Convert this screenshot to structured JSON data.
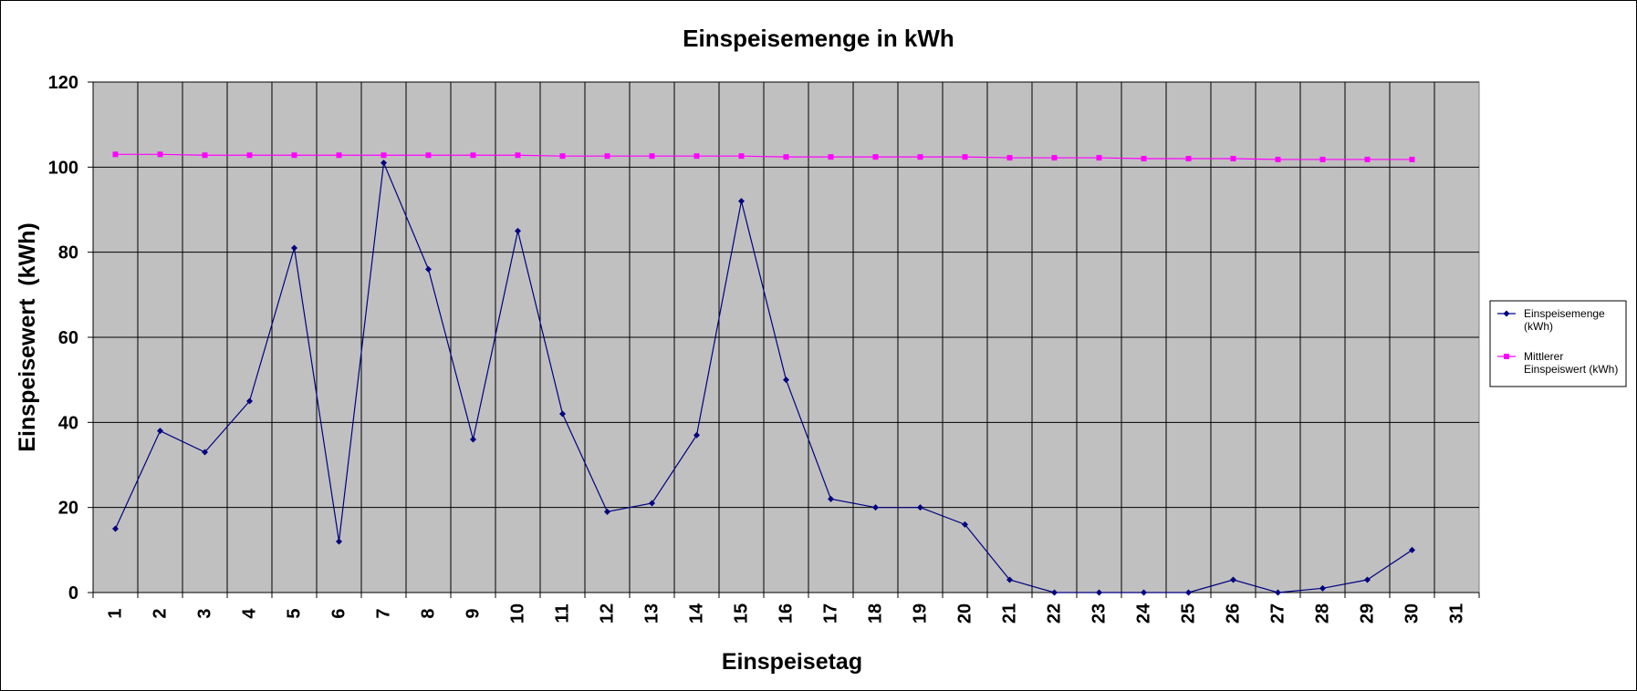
{
  "chart_data": {
    "type": "line",
    "title": "Einspeisemenge in kWh",
    "xlabel": "Einspeisetag",
    "ylabel": "Einspeisewert  (kWh)",
    "categories": [
      "1",
      "2",
      "3",
      "4",
      "5",
      "6",
      "7",
      "8",
      "9",
      "10",
      "11",
      "12",
      "13",
      "14",
      "15",
      "16",
      "17",
      "18",
      "19",
      "20",
      "21",
      "22",
      "23",
      "24",
      "25",
      "26",
      "27",
      "28",
      "29",
      "30",
      "31"
    ],
    "ylim": [
      0,
      120
    ],
    "yticks": [
      "0",
      "20",
      "40",
      "60",
      "80",
      "100",
      "120"
    ],
    "grid": true,
    "legend_position": "right",
    "plot_background": "#c0c0c0",
    "series": [
      {
        "name": "Einspeisemenge (kWh)",
        "legend_lines": [
          "Einspeisemenge",
          "(kWh)"
        ],
        "color": "#000080",
        "marker": "diamond",
        "values": [
          15,
          38,
          33,
          45,
          81,
          12,
          101,
          76,
          36,
          85,
          42,
          19,
          21,
          37,
          92,
          50,
          22,
          20,
          20,
          16,
          3,
          0,
          0,
          0,
          0,
          3,
          0,
          1,
          3,
          10,
          null
        ]
      },
      {
        "name": "Mittlerer Einspeiswert (kWh)",
        "legend_lines": [
          "Mittlerer",
          "Einspeiswert (kWh)"
        ],
        "color": "#ff00ff",
        "marker": "square",
        "values": [
          103,
          103,
          102.8,
          102.8,
          102.8,
          102.8,
          102.8,
          102.8,
          102.8,
          102.8,
          102.6,
          102.6,
          102.6,
          102.6,
          102.6,
          102.4,
          102.4,
          102.4,
          102.4,
          102.4,
          102.2,
          102.2,
          102.2,
          102,
          102,
          102,
          101.8,
          101.8,
          101.8,
          101.8,
          null
        ]
      }
    ]
  }
}
